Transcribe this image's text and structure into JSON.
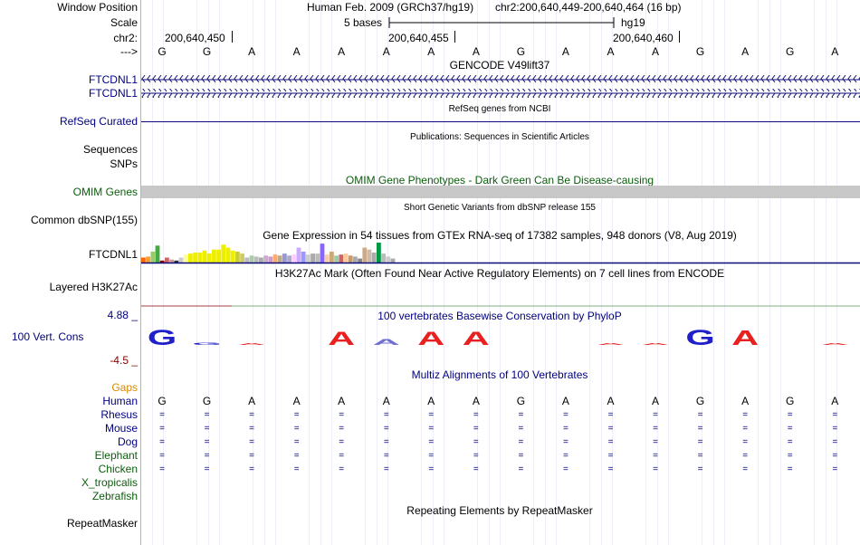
{
  "header": {
    "window_position_label": "Window Position",
    "assembly_text": "Human Feb. 2009 (GRCh37/hg19)",
    "position_text": "chr2:200,640,449-200,640,464 (16 bp)",
    "scale_label": "Scale",
    "scale_bar_text": "5 bases",
    "scale_db": "hg19",
    "chrom_label": "chr2:",
    "coord_ticks": [
      "200,640,450",
      "200,640,455",
      "200,640,460"
    ],
    "strand_label": "--->"
  },
  "sequence": [
    "G",
    "G",
    "A",
    "A",
    "A",
    "A",
    "A",
    "A",
    "G",
    "A",
    "A",
    "A",
    "G",
    "A",
    "G",
    "A"
  ],
  "tracks": {
    "gencode": {
      "title": "GENCODE V49lift37",
      "items": [
        "FTCDNL1",
        "FTCDNL1"
      ]
    },
    "refseq": {
      "title": "RefSeq genes from NCBI",
      "label": "RefSeq Curated"
    },
    "publications": {
      "title": "Publications: Sequences in Scientific Articles",
      "labels": [
        "Sequences",
        "SNPs"
      ]
    },
    "omim": {
      "title": "OMIM Gene Phenotypes - Dark Green Can Be Disease-causing",
      "label": "OMIM Genes",
      "color": "#c8c8c8"
    },
    "dbsnp": {
      "title": "Short Genetic Variants from dbSNP release 155",
      "label": "Common dbSNP(155)"
    },
    "gtex": {
      "title": "Gene Expression in 54 tissues from GTEx RNA-seq of 17382 samples, 948 donors (V8, Aug 2019)",
      "label": "FTCDNL1"
    },
    "h3k27ac": {
      "title": "H3K27Ac Mark (Often Found Near Active Regulatory Elements) on 7 cell lines from ENCODE",
      "label": "Layered H3K27Ac"
    },
    "phylop": {
      "title": "100 vertebrates Basewise Conservation by PhyloP",
      "label": "100 Vert. Cons",
      "max_label": "4.88 _",
      "min_label": "-4.5 _"
    },
    "multiz": {
      "title": "Multiz Alignments of 100 Vertebrates",
      "gaps_label": "Gaps",
      "human_label": "Human",
      "species": [
        {
          "name": "Rhesus",
          "has_alignment": true
        },
        {
          "name": "Mouse",
          "has_alignment": true
        },
        {
          "name": "Dog",
          "has_alignment": true
        },
        {
          "name": "Elephant",
          "has_alignment": true
        },
        {
          "name": "Chicken",
          "has_alignment": true
        },
        {
          "name": "X_tropicalis",
          "has_alignment": false
        },
        {
          "name": "Zebrafish",
          "has_alignment": false
        }
      ],
      "match_symbol": "="
    },
    "repeatmasker": {
      "title": "Repeating Elements by RepeatMasker",
      "label": "RepeatMasker"
    }
  },
  "colors": {
    "navy": "#000080",
    "dark_green": "#0c5c0c",
    "gaps_orange": "#d98a00",
    "logo_red": "#e82020",
    "logo_blue": "#2020c8"
  },
  "gtex_values": [
    0.25,
    0.3,
    0.55,
    0.85,
    0.1,
    0.25,
    0.15,
    0.1,
    0.25,
    0.4,
    0.45,
    0.5,
    0.5,
    0.6,
    0.45,
    0.65,
    0.65,
    0.9,
    0.75,
    0.6,
    0.55,
    0.45,
    0.25,
    0.35,
    0.3,
    0.25,
    0.35,
    0.3,
    0.4,
    0.35,
    0.45,
    0.35,
    0.4,
    0.75,
    0.55,
    0.4,
    0.45,
    0.45,
    0.95,
    0.4,
    0.55,
    0.35,
    0.4,
    0.45,
    0.35,
    0.3,
    0.2,
    0.75,
    0.65,
    0.5,
    1.0,
    0.45,
    0.3,
    0.2
  ],
  "gtex_colors": [
    "#ff6600",
    "#ff9933",
    "#99cc66",
    "#44aa44",
    "#990000",
    "#cc6666",
    "#cc9999",
    "#333333",
    "#cccccc",
    "#ffff99",
    "#eeee00",
    "#eeee00",
    "#eeee00",
    "#eeee00",
    "#eeee00",
    "#eeee00",
    "#eeee00",
    "#eeee00",
    "#eeee00",
    "#eeee00",
    "#cccc33",
    "#cccc66",
    "#bbbbbb",
    "#aaccaa",
    "#bbbbbb",
    "#aaaaaa",
    "#ccaacc",
    "#cc99cc",
    "#ffaa66",
    "#bbaa88",
    "#9999cc",
    "#aaaacc",
    "#ffccff",
    "#ccaaff",
    "#9999ff",
    "#cccccc",
    "#aaaaaa",
    "#bbbbbb",
    "#8866ff",
    "#ffccaa",
    "#ccaa77",
    "#99ccaa",
    "#cc6666",
    "#ffcc99",
    "#cc9966",
    "#aaaaaa",
    "#888888",
    "#ccaa88",
    "#ccbbaa",
    "#aaaaaa",
    "#009944",
    "#bbbbbb",
    "#cccccc",
    "#aaaaaa"
  ],
  "phylop_logo": [
    {
      "base": "G",
      "height": 0.9,
      "color": "#2020c8"
    },
    {
      "base": "G",
      "height": 0.15,
      "color": "#2020c8"
    },
    {
      "base": "A",
      "height": 0.1,
      "color": "#e82020"
    },
    {
      "base": "",
      "height": 0,
      "color": "#e82020"
    },
    {
      "base": "A",
      "height": 0.8,
      "color": "#e82020"
    },
    {
      "base": "A",
      "height": 0.35,
      "color": "#7070d0"
    },
    {
      "base": "A",
      "height": 0.8,
      "color": "#e82020"
    },
    {
      "base": "A",
      "height": 0.8,
      "color": "#e82020"
    },
    {
      "base": "",
      "height": 0,
      "color": "#e82020"
    },
    {
      "base": "",
      "height": 0,
      "color": "#e82020"
    },
    {
      "base": "A",
      "height": 0.1,
      "color": "#e82020"
    },
    {
      "base": "A",
      "height": 0.1,
      "color": "#e82020"
    },
    {
      "base": "G",
      "height": 0.9,
      "color": "#2020c8"
    },
    {
      "base": "A",
      "height": 0.85,
      "color": "#e82020"
    },
    {
      "base": "",
      "height": 0,
      "color": "#e82020"
    },
    {
      "base": "A",
      "height": 0.1,
      "color": "#e82020"
    }
  ]
}
